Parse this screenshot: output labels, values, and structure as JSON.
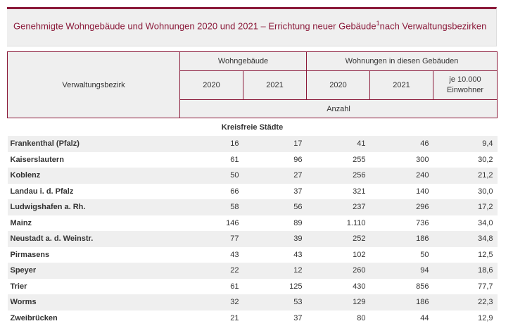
{
  "title": {
    "main": "Genehmigte Wohngebäude und Wohnungen 2020 und 2021 – Errichtung neuer Gebäude",
    "sup": "1",
    "rest": "nach Verwaltungsbezirken"
  },
  "header": {
    "col_region": "Verwaltungsbezirk",
    "group1": "Wohngebäude",
    "group2": "Wohnungen in diesen Gebäuden",
    "y2020": "2020",
    "y2021": "2021",
    "per10000_a": "je 10.000",
    "per10000_b": "Einwohner",
    "unit": "Anzahl"
  },
  "section": "Kreisfreie Städte",
  "rows": [
    [
      "Frankenthal (Pfalz)",
      "16",
      "17",
      "41",
      "46",
      "9,4"
    ],
    [
      "Kaiserslautern",
      "61",
      "96",
      "255",
      "300",
      "30,2"
    ],
    [
      "Koblenz",
      "50",
      "27",
      "256",
      "240",
      "21,2"
    ],
    [
      "Landau i. d. Pfalz",
      "66",
      "37",
      "321",
      "140",
      "30,0"
    ],
    [
      "Ludwigshafen a. Rh.",
      "58",
      "56",
      "237",
      "296",
      "17,2"
    ],
    [
      "Mainz",
      "146",
      "89",
      "1.110",
      "736",
      "34,0"
    ],
    [
      "Neustadt a. d. Weinstr.",
      "77",
      "39",
      "252",
      "186",
      "34,8"
    ],
    [
      "Pirmasens",
      "43",
      "43",
      "102",
      "50",
      "12,5"
    ],
    [
      "Speyer",
      "22",
      "12",
      "260",
      "94",
      "18,6"
    ],
    [
      "Trier",
      "61",
      "125",
      "430",
      "856",
      "77,7"
    ],
    [
      "Worms",
      "32",
      "53",
      "129",
      "186",
      "22,3"
    ],
    [
      "Zweibrücken",
      "21",
      "37",
      "80",
      "44",
      "12,9"
    ]
  ]
}
